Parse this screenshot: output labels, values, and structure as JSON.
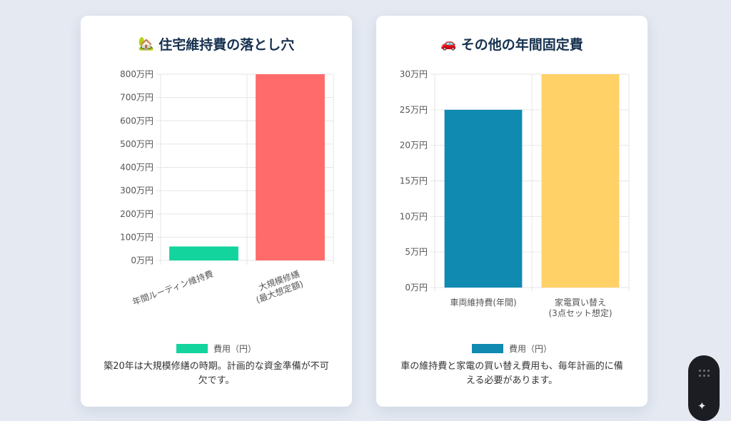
{
  "cards": [
    {
      "icon": "🏡",
      "title": "住宅維持費の落とし穴",
      "legend_label": "費用（円）",
      "note": "築20年は大規模修繕の時期。計画的な資金準備が不可欠です。"
    },
    {
      "icon": "🚗",
      "title": "その他の年間固定費",
      "legend_label": "費用（円）",
      "note": "車の維持費と家電の買い替え費用も、毎年計画的に備える必要があります。"
    }
  ],
  "chart_data": [
    {
      "type": "bar",
      "categories": [
        [
          "年間ルーティン維持費"
        ],
        [
          "大規模修繕",
          "(最大想定額)"
        ]
      ],
      "series": [
        {
          "name": "費用（円）",
          "values": [
            600000,
            8000000
          ]
        }
      ],
      "bar_colors": [
        "#14d49e",
        "#ff6b6b"
      ],
      "ylim": [
        0,
        8000000
      ],
      "yticks": [
        0,
        1000000,
        2000000,
        3000000,
        4000000,
        5000000,
        6000000,
        7000000,
        8000000
      ],
      "ytick_labels": [
        "0万円",
        "100万円",
        "200万円",
        "300万円",
        "400万円",
        "500万円",
        "600万円",
        "700万円",
        "800万円"
      ],
      "xlabels_rotated": true,
      "grid": true,
      "legend_position": "bottom"
    },
    {
      "type": "bar",
      "categories": [
        [
          "車両維持費(年間)"
        ],
        [
          "家電買い替え",
          "(3点セット想定)"
        ]
      ],
      "series": [
        {
          "name": "費用（円）",
          "values": [
            250000,
            300000
          ]
        }
      ],
      "bar_colors": [
        "#118ab2",
        "#ffd166"
      ],
      "ylim": [
        0,
        300000
      ],
      "yticks": [
        0,
        50000,
        100000,
        150000,
        200000,
        250000,
        300000
      ],
      "ytick_labels": [
        "0万円",
        "5万円",
        "10万円",
        "15万円",
        "20万円",
        "25万円",
        "30万円"
      ],
      "xlabels_rotated": false,
      "grid": true,
      "legend_position": "bottom"
    }
  ],
  "icons": {
    "widget_top": "grip-dots-icon",
    "widget_bottom": "sparkle-icon"
  }
}
